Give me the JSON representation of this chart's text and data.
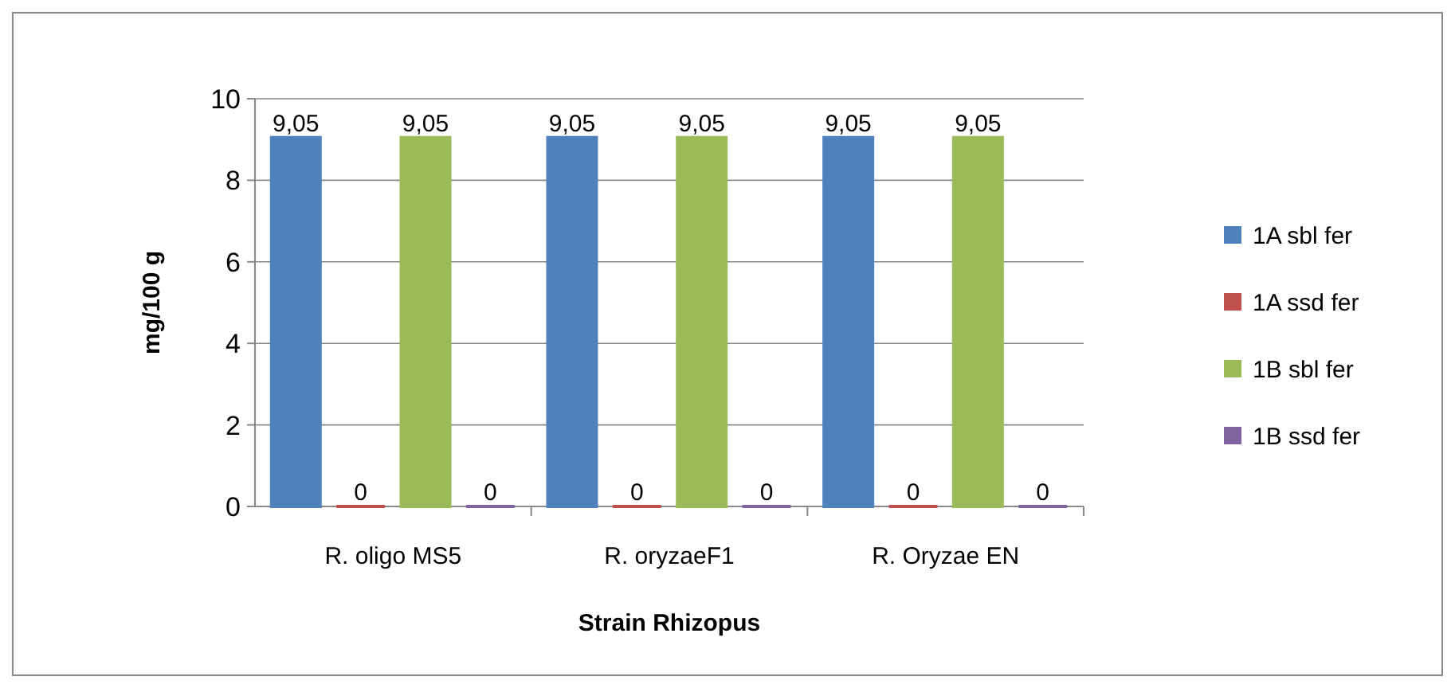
{
  "chart_data": {
    "type": "bar",
    "xlabel": "Strain Rhizopus",
    "ylabel": "mg/100 g",
    "categories": [
      "R. oligo MS5",
      "R. oryzaeF1",
      "R. Oryzae EN"
    ],
    "series": [
      {
        "name": "1A sbl fer",
        "color": "#4f81bd",
        "values": [
          9.05,
          9.05,
          9.05
        ],
        "value_labels": [
          "9,05",
          "9,05",
          "9,05"
        ]
      },
      {
        "name": "1A ssd fer",
        "color": "#c0504d",
        "values": [
          0,
          0,
          0
        ],
        "value_labels": [
          "0",
          "0",
          "0"
        ]
      },
      {
        "name": "1B sbl fer",
        "color": "#9bbb59",
        "values": [
          9.05,
          9.05,
          9.05
        ],
        "value_labels": [
          "9,05",
          "9,05",
          "9,05"
        ]
      },
      {
        "name": "1B ssd fer",
        "color": "#8064a2",
        "values": [
          0,
          0,
          0
        ],
        "value_labels": [
          "0",
          "0",
          "0"
        ]
      }
    ],
    "ylim": [
      0,
      10
    ],
    "yticks": [
      0,
      2,
      4,
      6,
      8,
      10
    ],
    "grid": "y",
    "legend": "right"
  }
}
